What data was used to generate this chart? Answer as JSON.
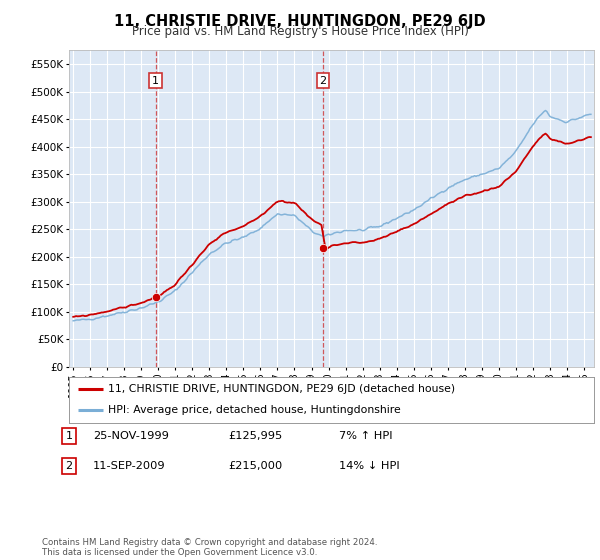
{
  "title": "11, CHRISTIE DRIVE, HUNTINGDON, PE29 6JD",
  "subtitle": "Price paid vs. HM Land Registry's House Price Index (HPI)",
  "ylim": [
    0,
    575000
  ],
  "ytick_labels": [
    "£0",
    "£50K",
    "£100K",
    "£150K",
    "£200K",
    "£250K",
    "£300K",
    "£350K",
    "£400K",
    "£450K",
    "£500K",
    "£550K"
  ],
  "ytick_vals": [
    0,
    50000,
    100000,
    150000,
    200000,
    250000,
    300000,
    350000,
    400000,
    450000,
    500000,
    550000
  ],
  "background_color": "#ffffff",
  "plot_bg_color": "#dde8f5",
  "grid_color": "#ffffff",
  "legend_label_red": "11, CHRISTIE DRIVE, HUNTINGDON, PE29 6JD (detached house)",
  "legend_label_blue": "HPI: Average price, detached house, Huntingdonshire",
  "sale1_date": "25-NOV-1999",
  "sale1_price": "£125,995",
  "sale1_hpi": "7% ↑ HPI",
  "sale2_date": "11-SEP-2009",
  "sale2_price": "£215,000",
  "sale2_hpi": "14% ↓ HPI",
  "footnote": "Contains HM Land Registry data © Crown copyright and database right 2024.\nThis data is licensed under the Open Government Licence v3.0.",
  "red_line_color": "#cc0000",
  "blue_line_color": "#7aaed6",
  "dashed_color": "#cc3333"
}
